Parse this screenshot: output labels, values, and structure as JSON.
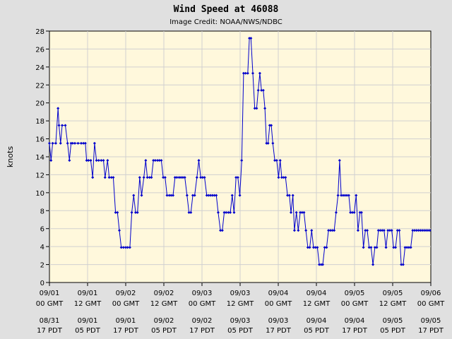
{
  "chart_data": {
    "type": "line",
    "title": "Wind Speed at 46088",
    "subtitle": "Image Credit: NOAA/NWS/NDBC",
    "ylabel": "knots",
    "xlabel": "",
    "ylim": [
      0,
      28
    ],
    "yticks": [
      0,
      2,
      4,
      6,
      8,
      10,
      12,
      14,
      16,
      18,
      20,
      22,
      24,
      26,
      28
    ],
    "grid": true,
    "x_ticks": [
      {
        "gmt_date": "09/01",
        "gmt_time": "00 GMT",
        "local_date": "08/31",
        "local_time": "17 PDT"
      },
      {
        "gmt_date": "09/01",
        "gmt_time": "12 GMT",
        "local_date": "09/01",
        "local_time": "05 PDT"
      },
      {
        "gmt_date": "09/02",
        "gmt_time": "00 GMT",
        "local_date": "09/01",
        "local_time": "17 PDT"
      },
      {
        "gmt_date": "09/02",
        "gmt_time": "12 GMT",
        "local_date": "09/02",
        "local_time": "05 PDT"
      },
      {
        "gmt_date": "09/03",
        "gmt_time": "00 GMT",
        "local_date": "09/02",
        "local_time": "17 PDT"
      },
      {
        "gmt_date": "09/03",
        "gmt_time": "12 GMT",
        "local_date": "09/03",
        "local_time": "05 PDT"
      },
      {
        "gmt_date": "09/04",
        "gmt_time": "00 GMT",
        "local_date": "09/03",
        "local_time": "17 PDT"
      },
      {
        "gmt_date": "09/04",
        "gmt_time": "12 GMT",
        "local_date": "09/04",
        "local_time": "05 PDT"
      },
      {
        "gmt_date": "09/05",
        "gmt_time": "00 GMT",
        "local_date": "09/04",
        "local_time": "17 PDT"
      },
      {
        "gmt_date": "09/05",
        "gmt_time": "12 GMT",
        "local_date": "09/05",
        "local_time": "05 PDT"
      },
      {
        "gmt_date": "09/06",
        "gmt_time": "00 GMT",
        "local_date": "09/05",
        "local_time": "17 PDT"
      }
    ],
    "x_hours_range": [
      0,
      120
    ],
    "colors": {
      "line": "#0000cc",
      "plot_bg": "#fff8dc",
      "grid": "#d0d0d0",
      "page_bg": "#e0e0e0"
    },
    "series": [
      {
        "values": [
          [
            0.0,
            15.5
          ],
          [
            0.5,
            13.6
          ],
          [
            1.0,
            15.5
          ],
          [
            2.0,
            15.5
          ],
          [
            2.7,
            19.4
          ],
          [
            3.0,
            17.5
          ],
          [
            3.5,
            15.5
          ],
          [
            4.0,
            17.5
          ],
          [
            5.0,
            17.5
          ],
          [
            5.7,
            15.5
          ],
          [
            6.3,
            13.6
          ],
          [
            6.8,
            15.5
          ],
          [
            7.3,
            15.5
          ],
          [
            8.0,
            15.5
          ],
          [
            9.0,
            15.5
          ],
          [
            10.0,
            15.5
          ],
          [
            10.7,
            15.5
          ],
          [
            11.3,
            15.5
          ],
          [
            11.7,
            13.6
          ],
          [
            12.3,
            13.6
          ],
          [
            13.0,
            13.6
          ],
          [
            13.6,
            11.7
          ],
          [
            14.2,
            15.5
          ],
          [
            14.8,
            13.6
          ],
          [
            15.5,
            13.6
          ],
          [
            16.3,
            13.6
          ],
          [
            17.0,
            13.6
          ],
          [
            17.5,
            11.7
          ],
          [
            18.3,
            13.6
          ],
          [
            18.8,
            11.7
          ],
          [
            19.5,
            11.7
          ],
          [
            20.1,
            11.7
          ],
          [
            20.8,
            7.8
          ],
          [
            21.4,
            7.8
          ],
          [
            22.0,
            5.8
          ],
          [
            22.6,
            3.9
          ],
          [
            23.3,
            3.9
          ],
          [
            24.0,
            3.9
          ],
          [
            24.6,
            3.9
          ],
          [
            25.3,
            3.9
          ],
          [
            25.9,
            7.8
          ],
          [
            26.5,
            9.7
          ],
          [
            27.1,
            7.8
          ],
          [
            27.7,
            7.8
          ],
          [
            28.4,
            11.7
          ],
          [
            29.0,
            9.7
          ],
          [
            29.7,
            11.7
          ],
          [
            30.3,
            13.6
          ],
          [
            30.8,
            11.7
          ],
          [
            31.5,
            11.7
          ],
          [
            32.1,
            11.7
          ],
          [
            32.7,
            13.6
          ],
          [
            33.3,
            13.6
          ],
          [
            34.0,
            13.6
          ],
          [
            34.6,
            13.6
          ],
          [
            35.2,
            13.6
          ],
          [
            35.8,
            11.7
          ],
          [
            36.4,
            11.7
          ],
          [
            37.0,
            9.7
          ],
          [
            37.7,
            9.7
          ],
          [
            38.3,
            9.7
          ],
          [
            38.9,
            9.7
          ],
          [
            39.5,
            11.7
          ],
          [
            40.1,
            11.7
          ],
          [
            40.8,
            11.7
          ],
          [
            41.4,
            11.7
          ],
          [
            42.0,
            11.7
          ],
          [
            42.6,
            11.7
          ],
          [
            43.3,
            9.7
          ],
          [
            43.9,
            7.8
          ],
          [
            44.5,
            7.8
          ],
          [
            45.1,
            9.7
          ],
          [
            45.7,
            9.7
          ],
          [
            46.4,
            11.7
          ],
          [
            47.0,
            13.6
          ],
          [
            47.6,
            11.7
          ],
          [
            48.2,
            11.7
          ],
          [
            48.8,
            11.7
          ],
          [
            49.5,
            9.7
          ],
          [
            50.1,
            9.7
          ],
          [
            50.7,
            9.7
          ],
          [
            51.3,
            9.7
          ],
          [
            51.9,
            9.7
          ],
          [
            52.5,
            9.7
          ],
          [
            53.1,
            7.8
          ],
          [
            53.8,
            5.8
          ],
          [
            54.4,
            5.8
          ],
          [
            55.0,
            7.8
          ],
          [
            55.6,
            7.8
          ],
          [
            56.3,
            7.8
          ],
          [
            56.9,
            7.8
          ],
          [
            57.5,
            9.7
          ],
          [
            58.1,
            7.8
          ],
          [
            58.7,
            11.7
          ],
          [
            59.3,
            11.7
          ],
          [
            59.9,
            9.7
          ],
          [
            60.5,
            13.6
          ],
          [
            61.1,
            23.3
          ],
          [
            61.7,
            23.3
          ],
          [
            62.4,
            23.3
          ],
          [
            62.9,
            27.2
          ],
          [
            63.4,
            27.2
          ],
          [
            64.0,
            23.3
          ],
          [
            64.6,
            19.4
          ],
          [
            65.2,
            19.4
          ],
          [
            65.7,
            21.4
          ],
          [
            66.2,
            23.3
          ],
          [
            66.7,
            21.4
          ],
          [
            67.3,
            21.4
          ],
          [
            67.8,
            19.4
          ],
          [
            68.3,
            15.5
          ],
          [
            68.8,
            15.5
          ],
          [
            69.3,
            17.5
          ],
          [
            69.8,
            17.5
          ],
          [
            70.3,
            15.5
          ],
          [
            70.9,
            13.6
          ],
          [
            71.5,
            13.6
          ],
          [
            72.1,
            11.7
          ],
          [
            72.6,
            13.6
          ],
          [
            73.1,
            11.7
          ],
          [
            73.7,
            11.7
          ],
          [
            74.3,
            11.7
          ],
          [
            74.9,
            9.7
          ],
          [
            75.5,
            9.7
          ],
          [
            76.0,
            7.8
          ],
          [
            76.6,
            9.7
          ],
          [
            77.1,
            5.8
          ],
          [
            77.7,
            7.8
          ],
          [
            78.3,
            5.8
          ],
          [
            78.9,
            7.8
          ],
          [
            79.5,
            7.8
          ],
          [
            80.1,
            7.8
          ],
          [
            80.7,
            5.8
          ],
          [
            81.3,
            3.9
          ],
          [
            81.9,
            3.9
          ],
          [
            82.5,
            5.8
          ],
          [
            83.1,
            3.9
          ],
          [
            83.7,
            3.9
          ],
          [
            84.3,
            3.9
          ],
          [
            84.9,
            2.0
          ],
          [
            85.5,
            2.0
          ],
          [
            86.0,
            2.0
          ],
          [
            86.6,
            3.9
          ],
          [
            87.2,
            3.9
          ],
          [
            87.8,
            5.8
          ],
          [
            88.4,
            5.8
          ],
          [
            89.0,
            5.8
          ],
          [
            89.6,
            5.8
          ],
          [
            90.2,
            7.8
          ],
          [
            90.8,
            9.7
          ],
          [
            91.3,
            13.6
          ],
          [
            91.8,
            9.7
          ],
          [
            92.4,
            9.7
          ],
          [
            93.0,
            9.7
          ],
          [
            93.6,
            9.7
          ],
          [
            94.2,
            9.7
          ],
          [
            94.7,
            7.8
          ],
          [
            95.3,
            7.8
          ],
          [
            95.9,
            7.8
          ],
          [
            96.5,
            9.7
          ],
          [
            97.1,
            5.8
          ],
          [
            97.7,
            7.8
          ],
          [
            98.2,
            7.8
          ],
          [
            98.8,
            3.9
          ],
          [
            99.4,
            5.8
          ],
          [
            100.0,
            5.8
          ],
          [
            100.6,
            3.9
          ],
          [
            101.2,
            3.9
          ],
          [
            101.8,
            2.0
          ],
          [
            102.4,
            3.9
          ],
          [
            103.0,
            3.9
          ],
          [
            103.5,
            5.8
          ],
          [
            104.1,
            5.8
          ],
          [
            104.7,
            5.8
          ],
          [
            105.3,
            5.8
          ],
          [
            105.9,
            3.9
          ],
          [
            106.5,
            5.8
          ],
          [
            107.1,
            5.8
          ],
          [
            107.7,
            5.8
          ],
          [
            108.3,
            3.9
          ],
          [
            108.9,
            3.9
          ],
          [
            109.5,
            5.8
          ],
          [
            110.1,
            5.8
          ],
          [
            110.7,
            2.0
          ],
          [
            111.3,
            2.0
          ],
          [
            111.9,
            3.9
          ],
          [
            112.5,
            3.9
          ],
          [
            113.1,
            3.9
          ],
          [
            113.7,
            3.9
          ],
          [
            114.3,
            5.8
          ],
          [
            114.9,
            5.8
          ],
          [
            115.5,
            5.8
          ],
          [
            116.1,
            5.8
          ],
          [
            116.7,
            5.8
          ],
          [
            117.3,
            5.8
          ],
          [
            117.9,
            5.8
          ],
          [
            118.5,
            5.8
          ],
          [
            119.1,
            5.8
          ],
          [
            119.7,
            5.8
          ]
        ]
      }
    ]
  }
}
